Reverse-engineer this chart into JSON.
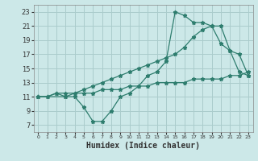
{
  "title": "",
  "xlabel": "Humidex (Indice chaleur)",
  "background_color": "#cce8e8",
  "grid_color": "#aacccc",
  "line_color": "#2e7d6e",
  "xlim": [
    -0.5,
    23.5
  ],
  "ylim": [
    6.0,
    24.0
  ],
  "yticks": [
    7,
    9,
    11,
    13,
    15,
    17,
    19,
    21,
    23
  ],
  "xtick_labels": [
    "0",
    "1",
    "2",
    "3",
    "4",
    "5",
    "6",
    "7",
    "8",
    "9",
    "10",
    "11",
    "12",
    "13",
    "14",
    "15",
    "16",
    "17",
    "18",
    "19",
    "20",
    "21",
    "22",
    "23"
  ],
  "line1_x": [
    0,
    1,
    2,
    3,
    4,
    5,
    6,
    7,
    8,
    9,
    10,
    11,
    12,
    13,
    14,
    15,
    16,
    17,
    18,
    19,
    20,
    21,
    22,
    23
  ],
  "line1_y": [
    11.0,
    11.0,
    11.5,
    11.0,
    11.0,
    9.5,
    7.5,
    7.5,
    9.0,
    11.0,
    11.5,
    12.5,
    14.0,
    14.5,
    16.0,
    23.0,
    22.5,
    21.5,
    21.5,
    21.0,
    18.5,
    17.5,
    17.0,
    14.0
  ],
  "line2_x": [
    0,
    3,
    4,
    5,
    6,
    7,
    8,
    9,
    10,
    11,
    12,
    13,
    14,
    15,
    16,
    17,
    18,
    19,
    20,
    21,
    22,
    23
  ],
  "line2_y": [
    11.0,
    11.0,
    11.5,
    12.0,
    12.5,
    13.0,
    13.5,
    14.0,
    14.5,
    15.0,
    15.5,
    16.0,
    16.5,
    17.0,
    18.0,
    19.5,
    20.5,
    21.0,
    21.0,
    17.5,
    14.5,
    14.0
  ],
  "line3_x": [
    0,
    1,
    2,
    3,
    4,
    5,
    6,
    7,
    8,
    9,
    10,
    11,
    12,
    13,
    14,
    15,
    16,
    17,
    18,
    19,
    20,
    21,
    22,
    23
  ],
  "line3_y": [
    11.0,
    11.0,
    11.5,
    11.5,
    11.5,
    11.5,
    11.5,
    12.0,
    12.0,
    12.0,
    12.5,
    12.5,
    12.5,
    13.0,
    13.0,
    13.0,
    13.0,
    13.5,
    13.5,
    13.5,
    13.5,
    14.0,
    14.0,
    14.5
  ]
}
